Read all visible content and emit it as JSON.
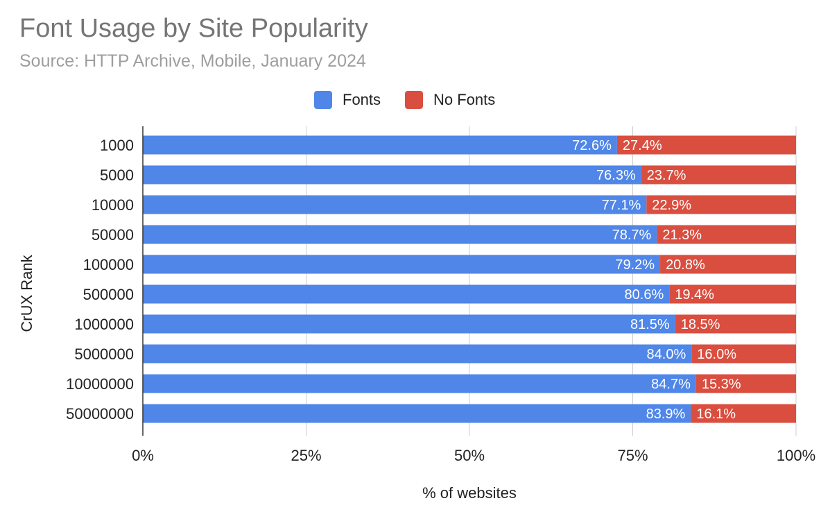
{
  "chart_data": {
    "type": "bar",
    "orientation": "horizontal",
    "stacked": "percent",
    "title": "Font Usage by Site Popularity",
    "subtitle": "Source: HTTP Archive, Mobile, January 2024",
    "xlabel": "% of websites",
    "ylabel": "CrUX Rank",
    "categories": [
      "1000",
      "5000",
      "10000",
      "50000",
      "100000",
      "500000",
      "1000000",
      "5000000",
      "10000000",
      "50000000"
    ],
    "series": [
      {
        "name": "Fonts",
        "color": "#4f86e8",
        "values": [
          72.6,
          76.3,
          77.1,
          78.7,
          79.2,
          80.6,
          81.5,
          84.0,
          84.7,
          83.9
        ]
      },
      {
        "name": "No Fonts",
        "color": "#d94e3f",
        "values": [
          27.4,
          23.7,
          22.9,
          21.3,
          20.8,
          19.4,
          18.5,
          16.0,
          15.3,
          16.1
        ]
      }
    ],
    "xlim": [
      0,
      100
    ],
    "xticks": [
      0,
      25,
      50,
      75,
      100
    ],
    "xtick_labels": [
      "0%",
      "25%",
      "50%",
      "75%",
      "100%"
    ],
    "grid": true,
    "legend_position": "top"
  }
}
